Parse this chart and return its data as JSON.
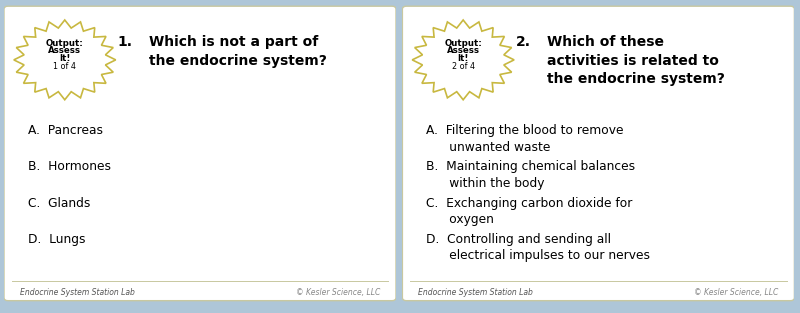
{
  "bg_color": "#aec6d8",
  "card_color": "#f5f0e0",
  "card_white": "#ffffff",
  "border_color": "#c8c8a0",
  "badge_border_color": "#c8b840",
  "card1": {
    "badge_lines": [
      "Output:",
      "Assess",
      "It!",
      "1 of 4"
    ],
    "q_number": "1.",
    "q_text": "Which is not a part of\nthe endocrine system?",
    "answers": [
      "A.  Pancreas",
      "B.  Hormones",
      "C.  Glands",
      "D.  Lungs"
    ],
    "footer_left": "Endocrine System Station Lab",
    "footer_right": "© Kesler Science, LLC"
  },
  "card2": {
    "badge_lines": [
      "Output:",
      "Assess",
      "It!",
      "2 of 4"
    ],
    "q_number": "2.",
    "q_text": "Which of these\nactivities is related to\nthe endocrine system?",
    "answers": [
      "A.  Filtering the blood to remove\n      unwanted waste",
      "B.  Maintaining chemical balances\n      within the body",
      "C.  Exchanging carbon dioxide for\n      oxygen",
      "D.  Controlling and sending all\n      electrical impulses to our nerves"
    ],
    "footer_left": "Endocrine System Station Lab",
    "footer_right": "© Kesler Science, LLC"
  }
}
